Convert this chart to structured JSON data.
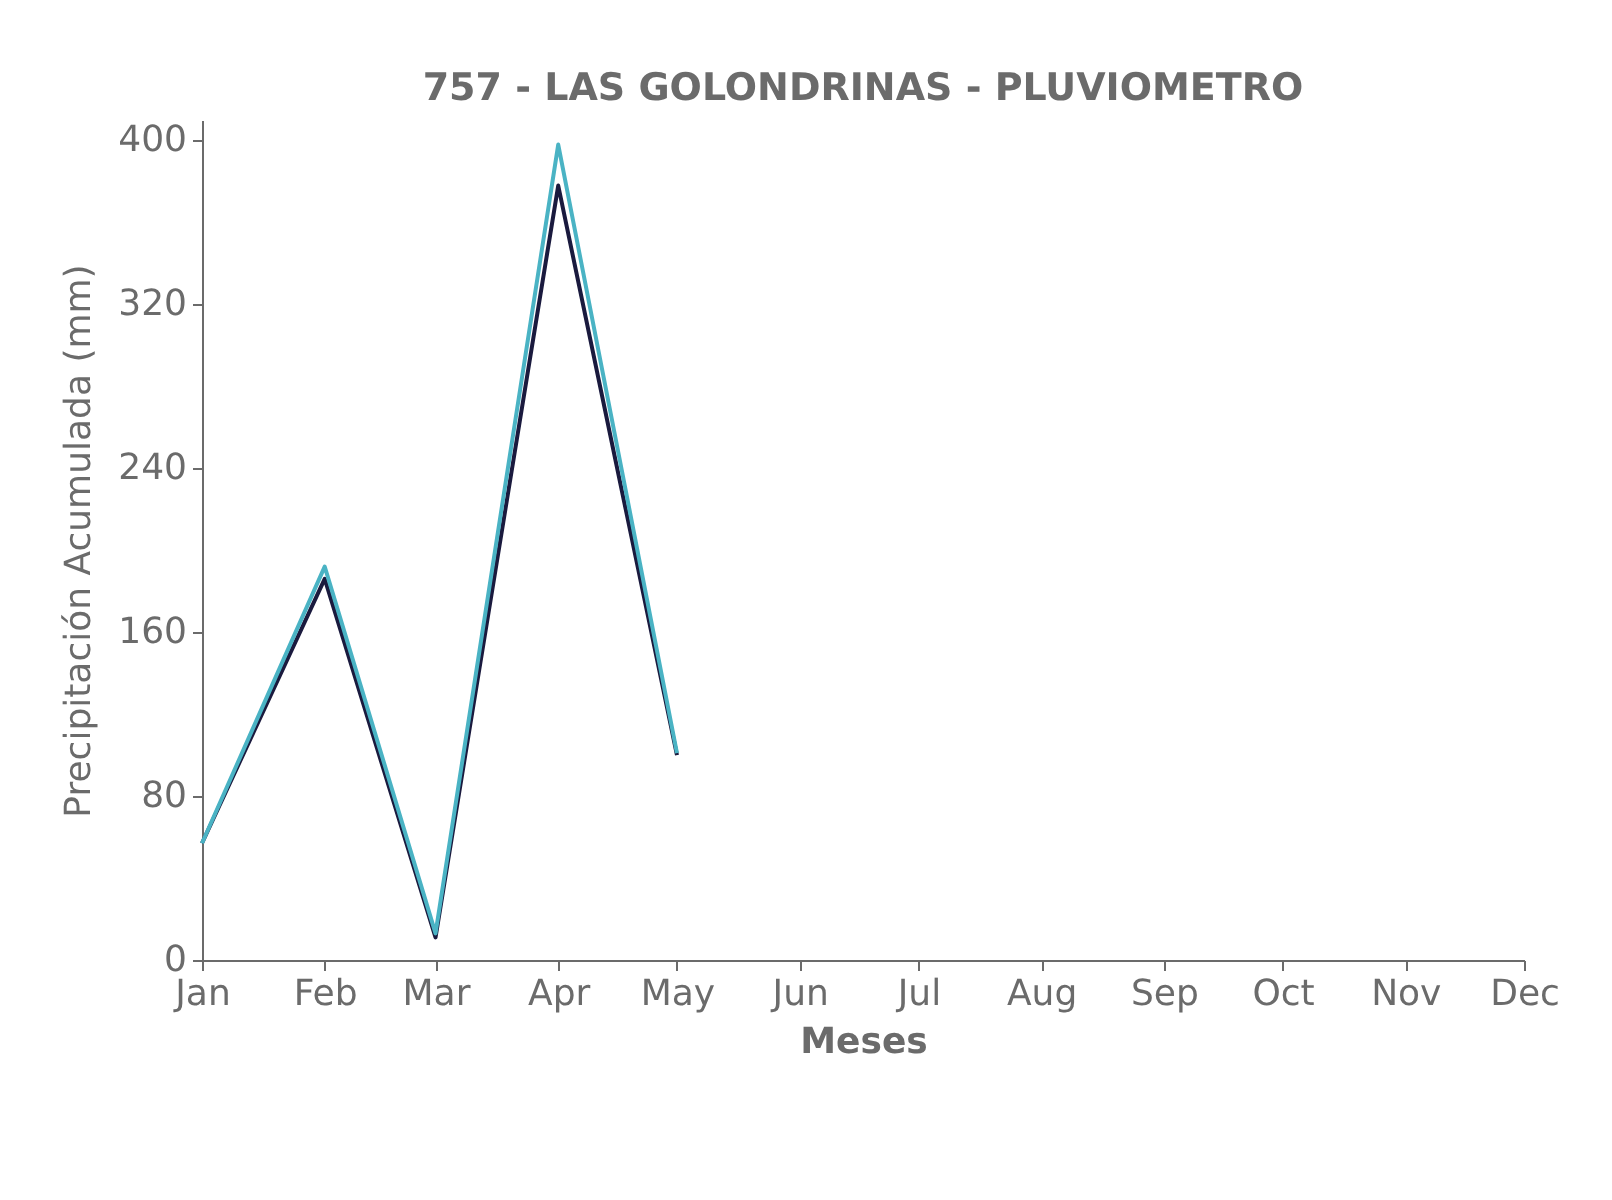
{
  "chart_data": {
    "type": "line",
    "title": "757 - LAS GOLONDRINAS - PLUVIOMETRO",
    "xlabel": "Meses",
    "ylabel": "Precipitación Acumulada (mm)",
    "x": [
      "--01-01",
      "--02-01",
      "--03-01",
      "--04-01",
      "--05-01"
    ],
    "series": [
      {
        "color": "#1a1a3e",
        "values": [
          57,
          186,
          11,
          378,
          100
        ]
      },
      {
        "color": "#4ab3c4",
        "values": [
          57,
          192,
          13,
          398,
          101
        ]
      }
    ],
    "xlim": [
      "--01-01",
      "--12-01"
    ],
    "xticks": [
      {
        "value": "--01-01",
        "label": "Jan"
      },
      {
        "value": "--02-01",
        "label": "Feb"
      },
      {
        "value": "--03-01",
        "label": "Mar"
      },
      {
        "value": "--04-01",
        "label": "Apr"
      },
      {
        "value": "--05-01",
        "label": "May"
      },
      {
        "value": "--06-01",
        "label": "Jun"
      },
      {
        "value": "--07-01",
        "label": "Jul"
      },
      {
        "value": "--08-01",
        "label": "Aug"
      },
      {
        "value": "--09-01",
        "label": "Sep"
      },
      {
        "value": "--10-01",
        "label": "Oct"
      },
      {
        "value": "--11-01",
        "label": "Nov"
      },
      {
        "value": "--12-01",
        "label": "Dec"
      }
    ],
    "ylim": [
      0,
      410
    ],
    "yticks": [
      0,
      80,
      160,
      240,
      320,
      400
    ],
    "grid": false,
    "marker": "none",
    "line_style": "solid"
  }
}
